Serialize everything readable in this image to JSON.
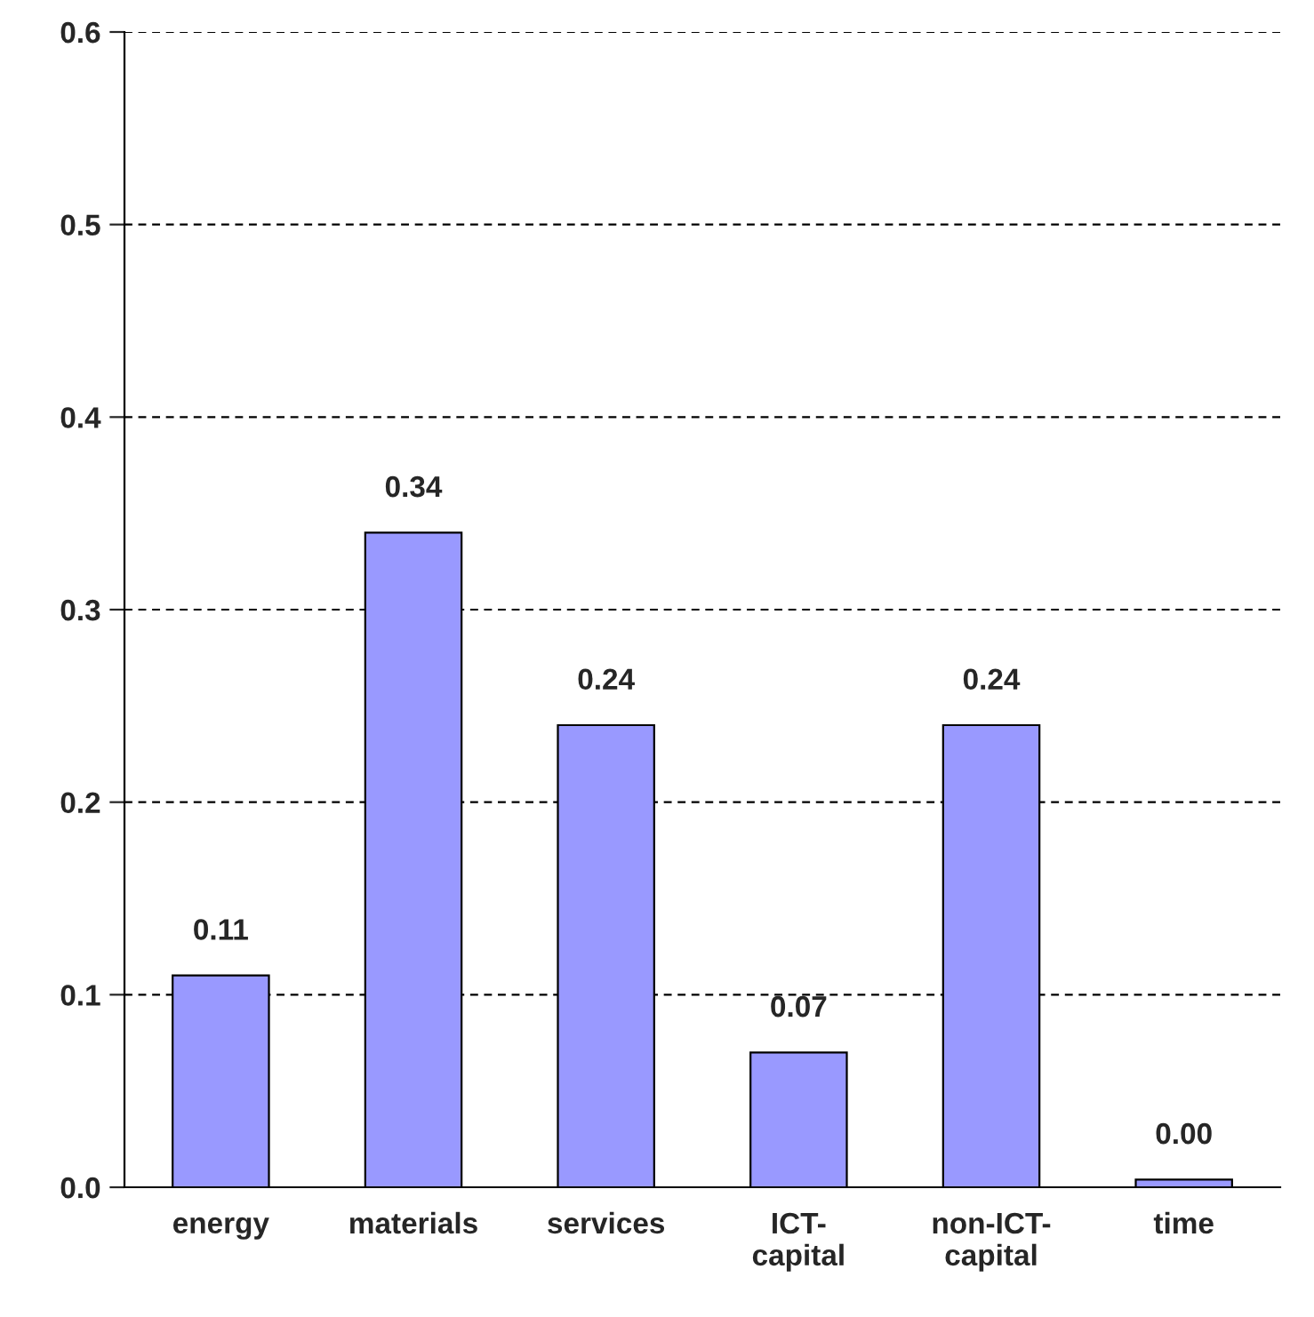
{
  "chart_data": {
    "type": "bar",
    "categories": [
      "energy",
      "materials",
      "services",
      "ICT-\ncapital",
      "non-ICT-\ncapital",
      "time"
    ],
    "values": [
      0.11,
      0.34,
      0.24,
      0.07,
      0.24,
      0.004
    ],
    "value_labels": [
      "0.11",
      "0.34",
      "0.24",
      "0.07",
      "0.24",
      "0.00"
    ],
    "color": "#9999ff",
    "ylim": [
      0,
      0.6
    ],
    "yticks": [
      {
        "value": 0,
        "label": "0.0"
      },
      {
        "value": 0.1,
        "label": "0.1"
      },
      {
        "value": 0.2,
        "label": "0.2"
      },
      {
        "value": 0.3,
        "label": "0.3"
      },
      {
        "value": 0.4,
        "label": "0.4"
      },
      {
        "value": 0.5,
        "label": "0.5"
      },
      {
        "value": 0.6,
        "label": "0.6"
      }
    ],
    "grid": "y",
    "line_style": "dashed"
  }
}
